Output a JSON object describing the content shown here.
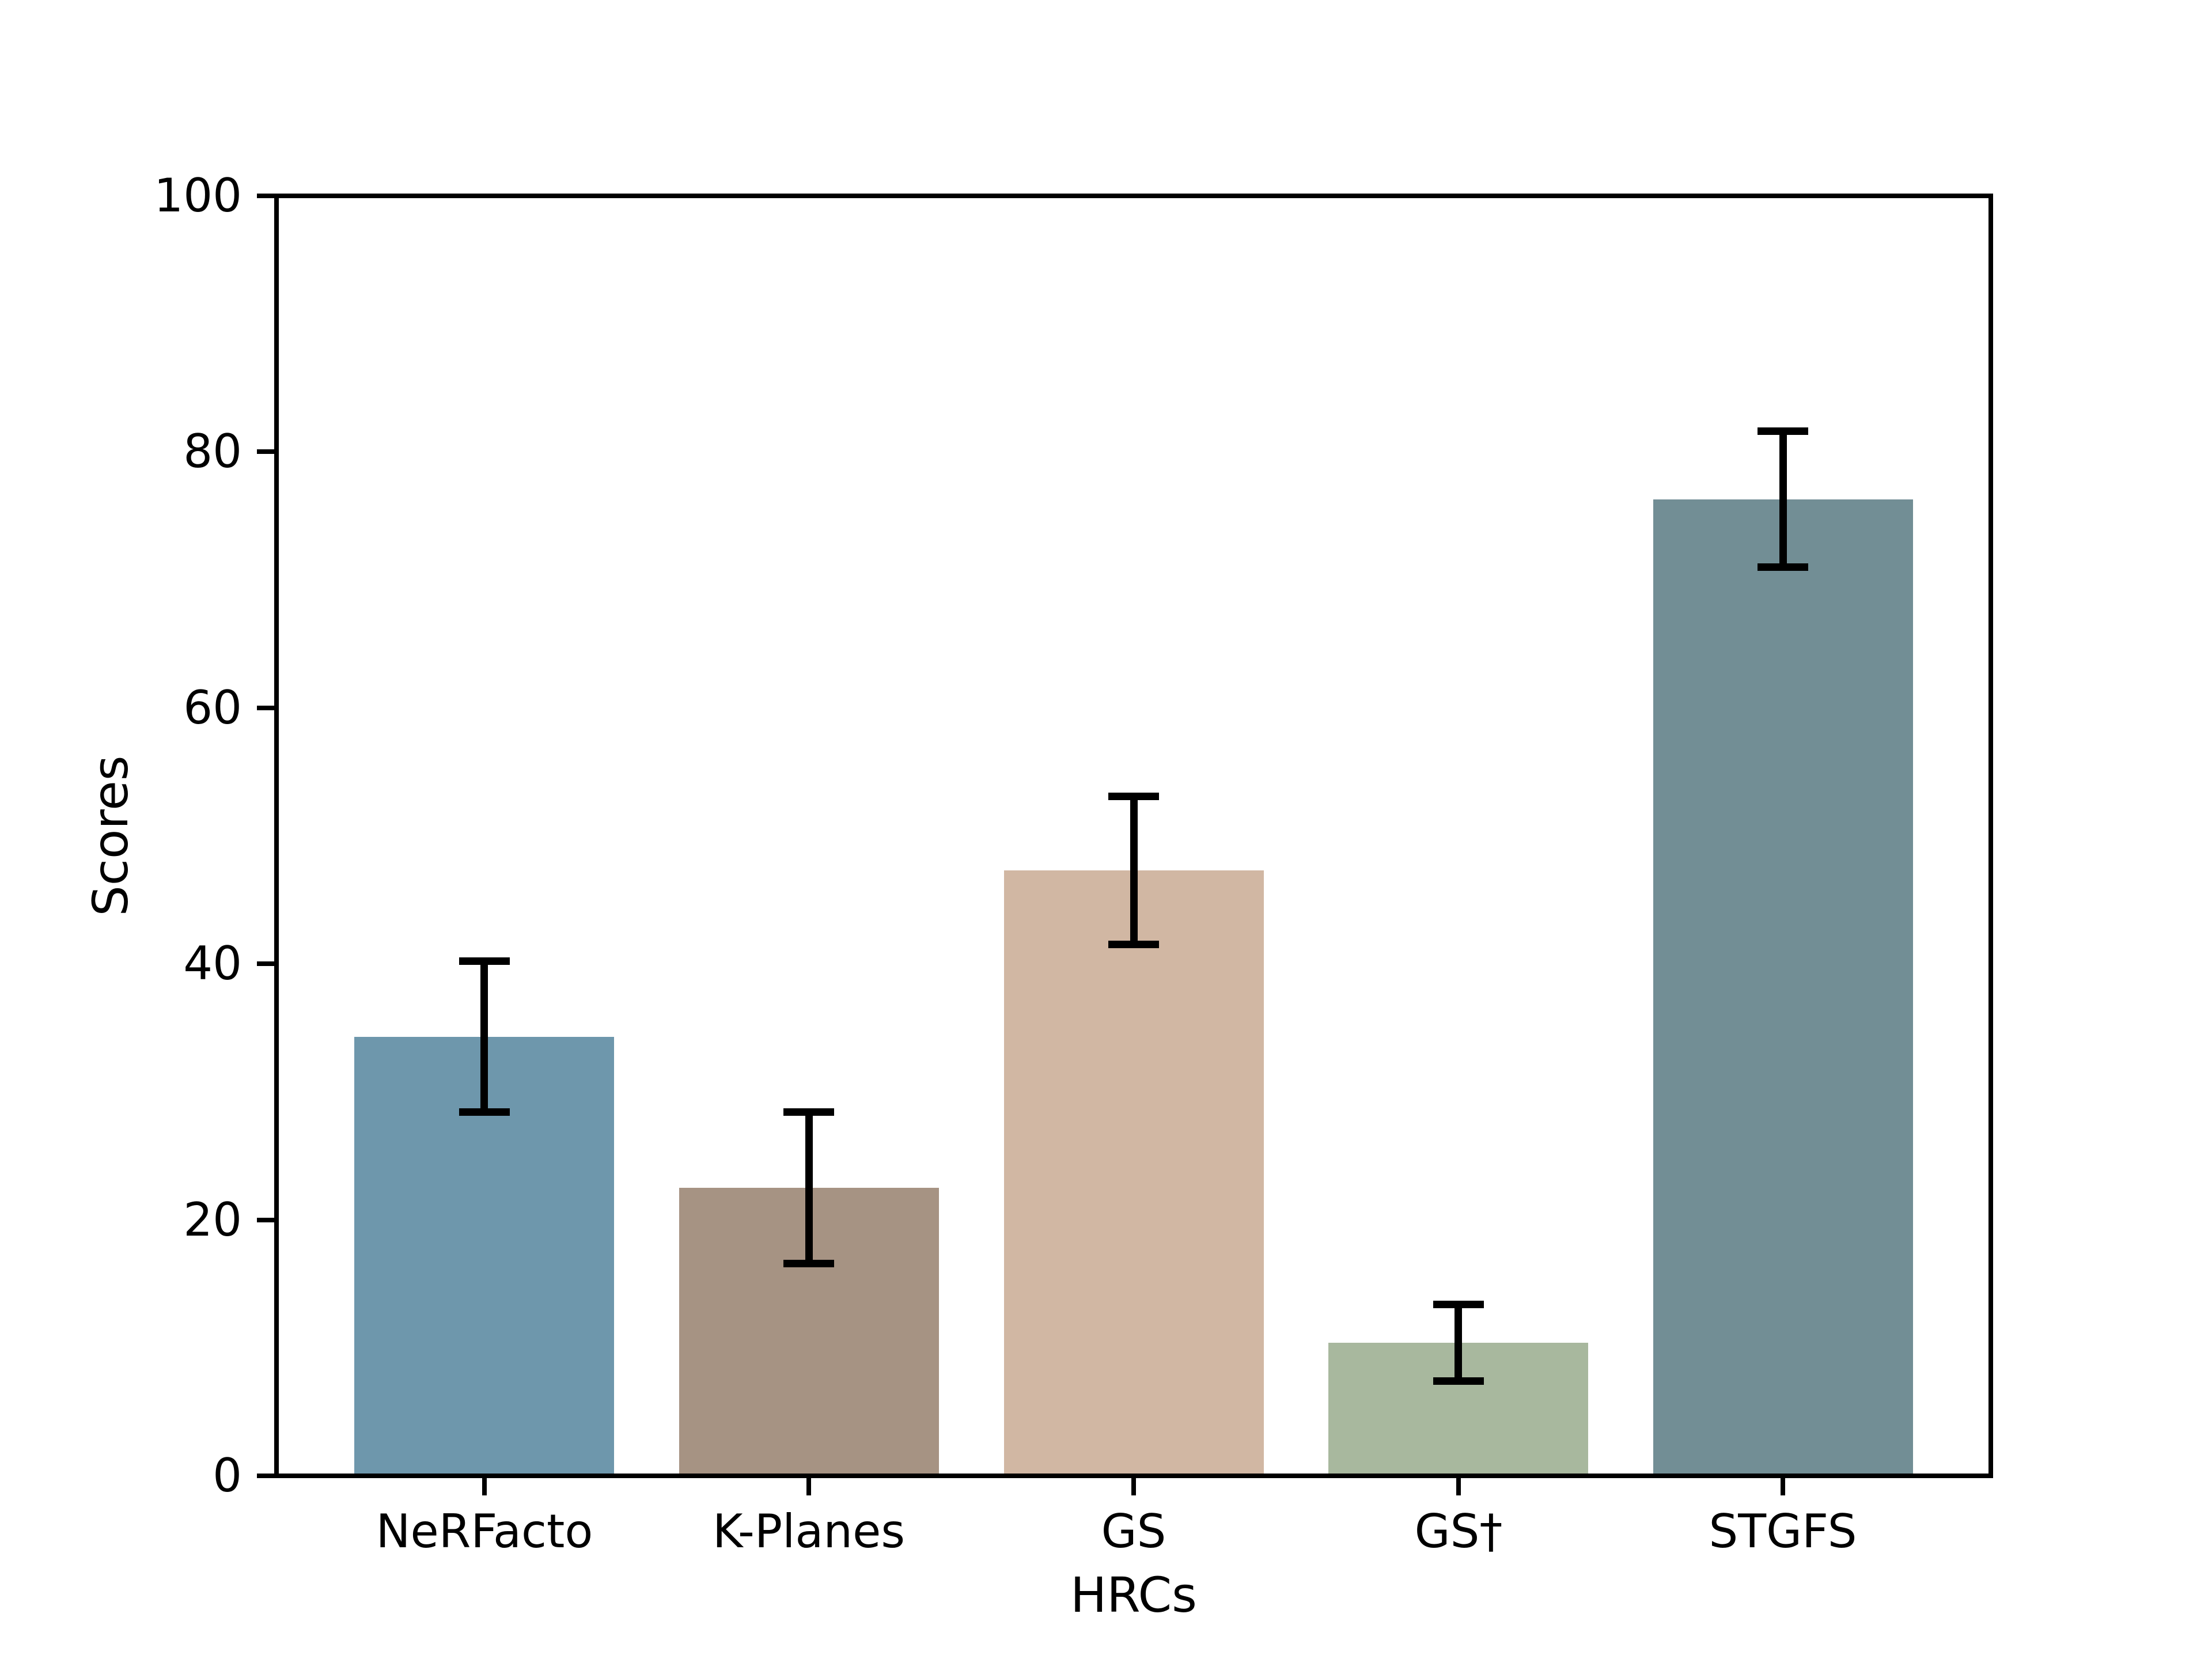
{
  "chart_data": {
    "type": "bar",
    "title": "",
    "xlabel": "HRCs",
    "ylabel": "Scores",
    "categories": [
      "NeRFacto",
      "K-Planes",
      "GS",
      "GS†",
      "STGFS"
    ],
    "values": [
      34.3,
      22.5,
      47.3,
      10.4,
      76.3
    ],
    "error_bars": [
      5.9,
      5.9,
      5.8,
      3.0,
      5.3
    ],
    "bar_colors": [
      "#6e97ac",
      "#a69383",
      "#d1b7a3",
      "#a8b89e",
      "#728e95"
    ],
    "error_color": "#000000",
    "yticks": [
      0,
      20,
      40,
      60,
      80,
      100
    ],
    "ylim": [
      0,
      100
    ],
    "grid": false,
    "legend": null,
    "background_color": "#ffffff"
  }
}
